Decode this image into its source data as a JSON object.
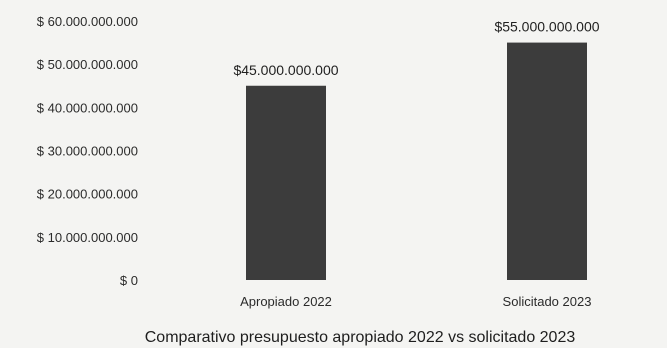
{
  "chart_data": {
    "type": "bar",
    "title": "Comparativo presupuesto apropiado 2022 vs solicitado 2023",
    "xlabel": "",
    "ylabel": "",
    "categories": [
      "Apropiado 2022",
      "Solicitado 2023"
    ],
    "values": [
      45000000000,
      55000000000
    ],
    "data_labels": [
      "$45.000.000.000",
      "$55.000.000.000"
    ],
    "ylim": [
      0,
      60000000000
    ],
    "y_ticks": [
      0,
      10000000000,
      20000000000,
      30000000000,
      40000000000,
      50000000000,
      60000000000
    ],
    "y_tick_labels": [
      "$ 0",
      "$ 10.000.000.000",
      "$ 20.000.000.000",
      "$ 30.000.000.000",
      "$ 40.000.000.000",
      "$ 50.000.000.000",
      "$ 60.000.000.000"
    ],
    "grid": false,
    "legend": "none",
    "bar_color": "#3c3c3c"
  }
}
